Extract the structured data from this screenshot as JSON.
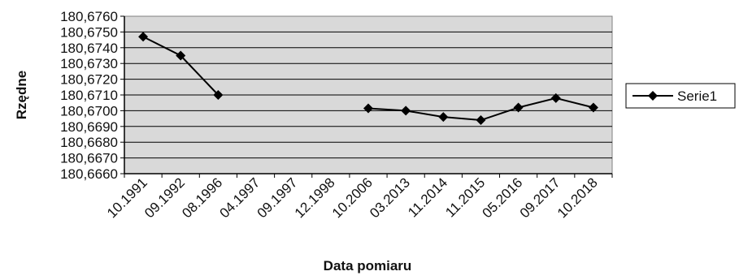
{
  "chart_data": {
    "type": "line",
    "title": "",
    "xlabel": "Data pomiaru",
    "ylabel": "Rzędne",
    "categories": [
      "10.1991",
      "09.1992",
      "08.1996",
      "04.1997",
      "09.1997",
      "12.1998",
      "10.2006",
      "03.2013",
      "11.2014",
      "11.2015",
      "05.2016",
      "09.2017",
      "10.2018"
    ],
    "ylim": [
      180.666,
      180.676
    ],
    "yticks": [
      "180,6760",
      "180,6750",
      "180,6740",
      "180,6730",
      "180,6720",
      "180,6710",
      "180,6700",
      "180,6690",
      "180,6680",
      "180,6670",
      "180,6660"
    ],
    "grid": true,
    "legend_position": "right",
    "series": [
      {
        "name": "Serie1",
        "color": "#000000",
        "values": [
          180.6747,
          180.6735,
          180.671,
          null,
          null,
          null,
          180.67015,
          180.67,
          180.6696,
          180.6694,
          180.6702,
          180.6708,
          180.6702
        ]
      }
    ],
    "plot_background": "#d9d9d9"
  }
}
